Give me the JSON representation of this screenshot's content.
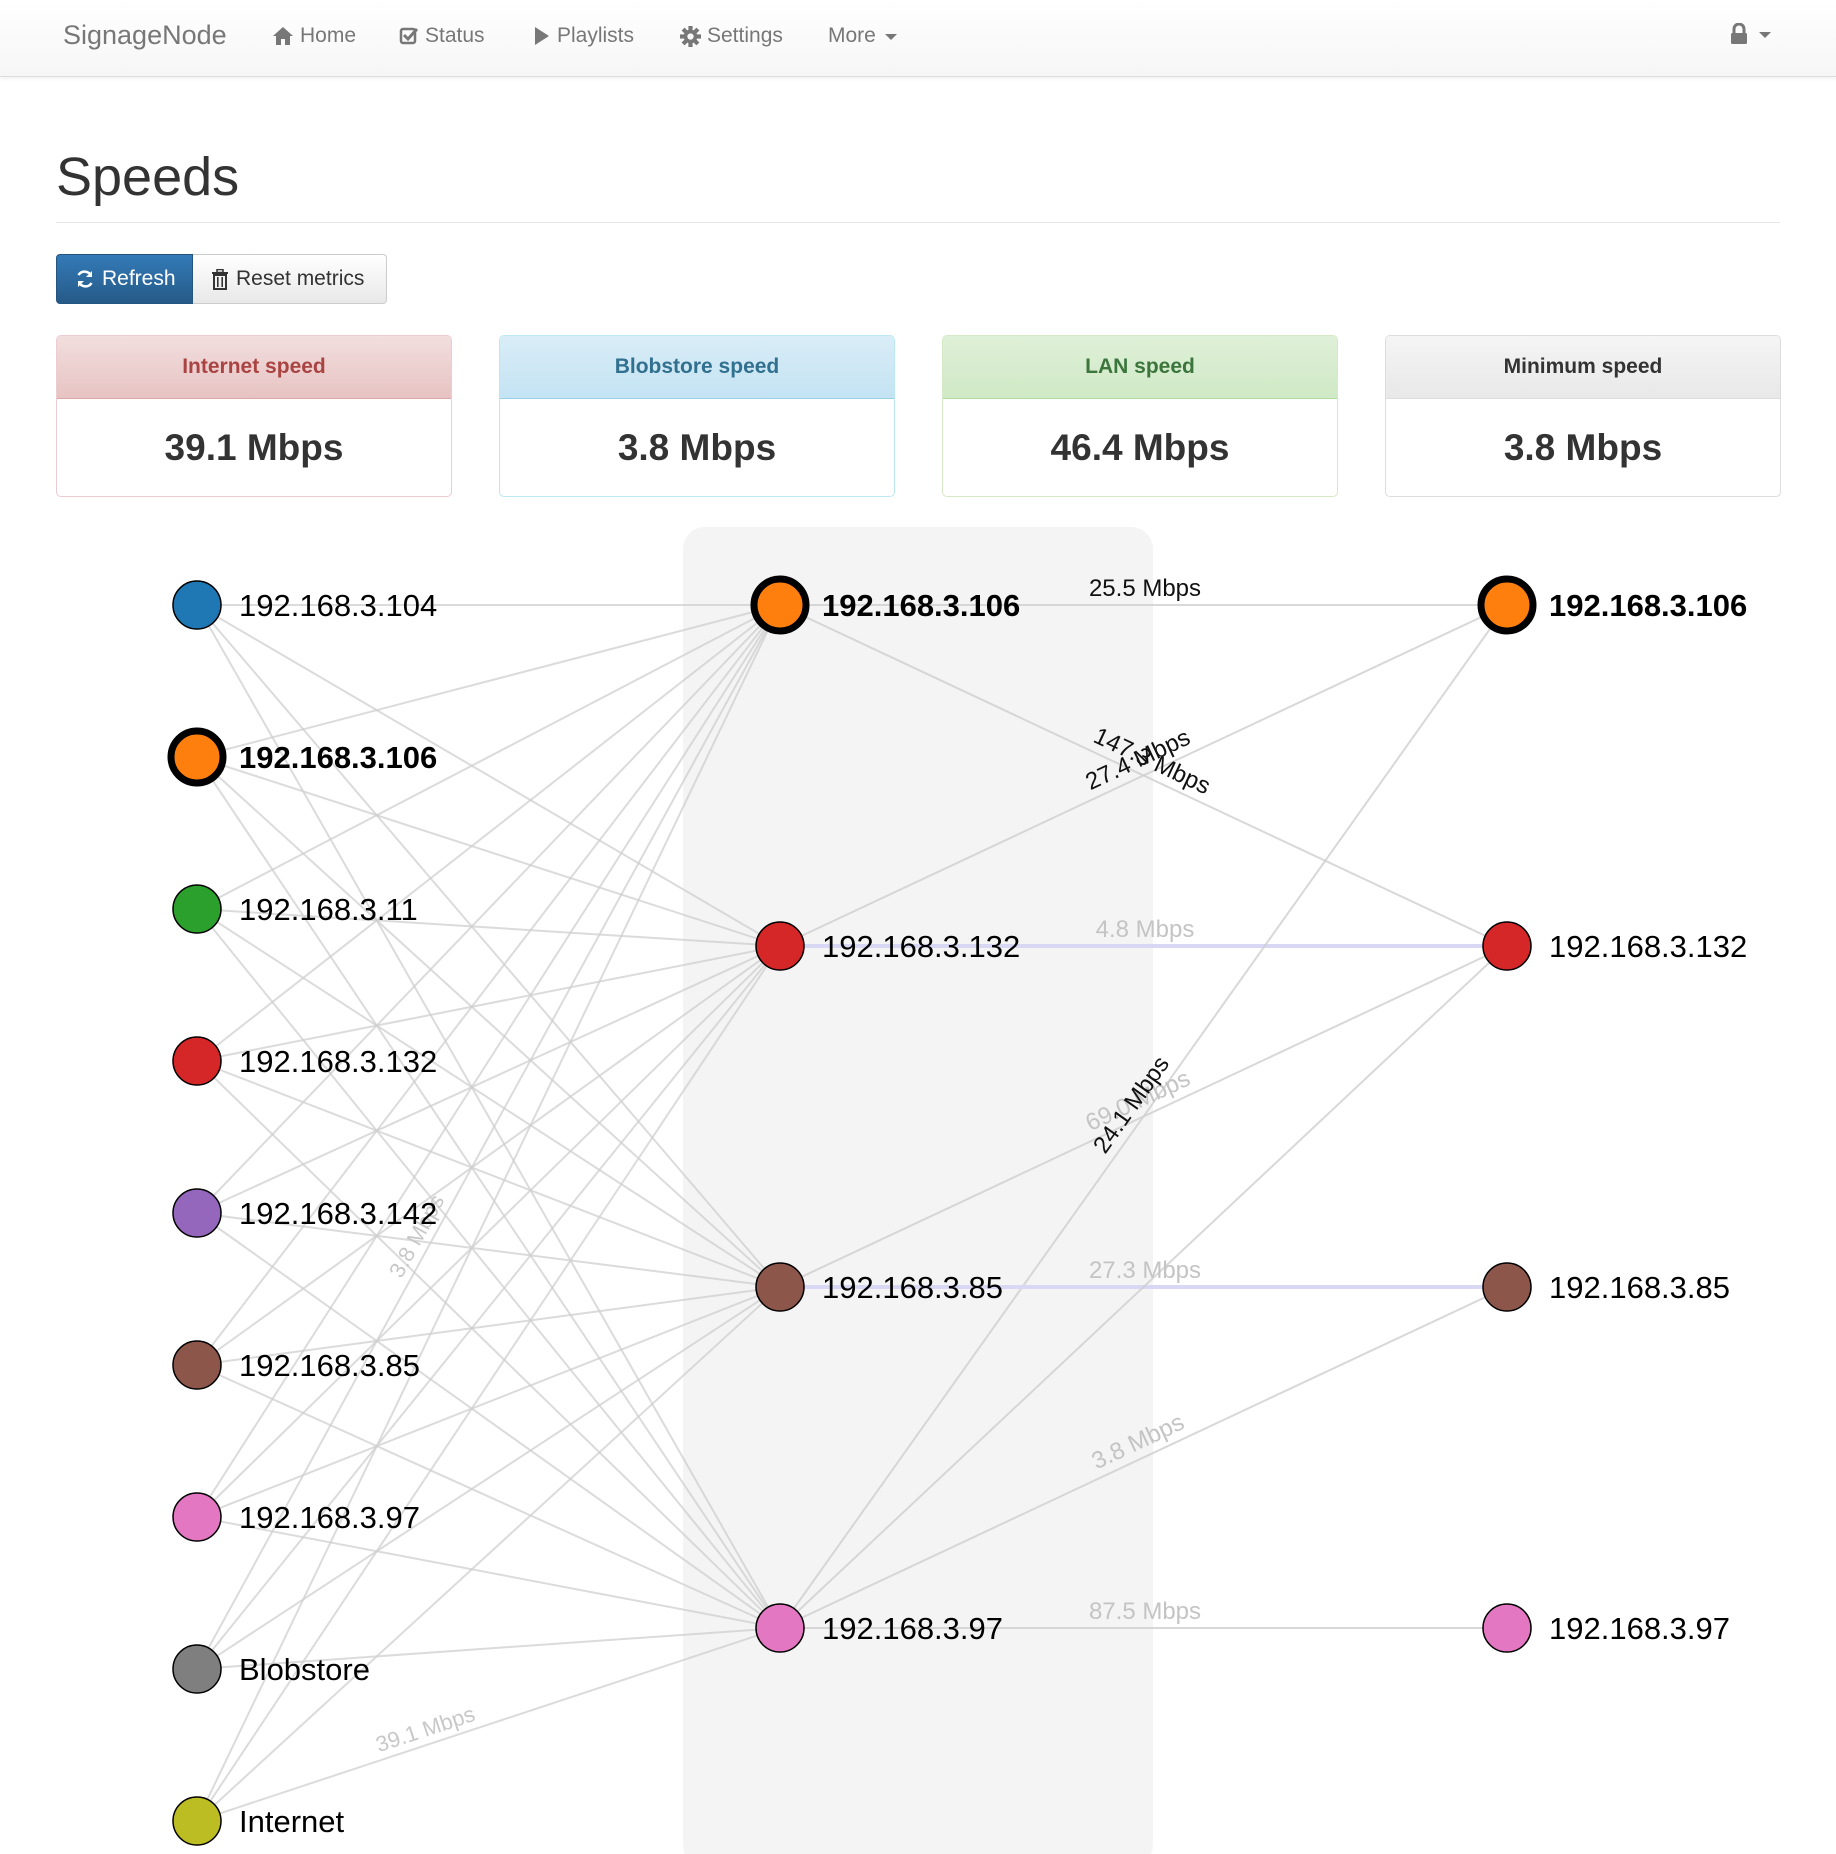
{
  "navbar": {
    "brand": "SignageNode",
    "items": [
      {
        "id": "home",
        "label": "Home",
        "icon": "home-icon"
      },
      {
        "id": "status",
        "label": "Status",
        "icon": "check-square-icon"
      },
      {
        "id": "playlists",
        "label": "Playlists",
        "icon": "play-icon"
      },
      {
        "id": "settings",
        "label": "Settings",
        "icon": "gear-icon"
      },
      {
        "id": "more",
        "label": "More",
        "icon": "caret-down-icon"
      }
    ],
    "user_menu_icon": "lock-icon"
  },
  "page": {
    "title": "Speeds"
  },
  "toolbar": {
    "refresh_label": "Refresh",
    "reset_label": "Reset metrics"
  },
  "panels": [
    {
      "title": "Internet speed",
      "value": "39.1 Mbps",
      "style": "danger"
    },
    {
      "title": "Blobstore speed",
      "value": "3.8 Mbps",
      "style": "info"
    },
    {
      "title": "LAN speed",
      "value": "46.4 Mbps",
      "style": "success"
    },
    {
      "title": "Minimum speed",
      "value": "3.8 Mbps",
      "style": "default"
    }
  ],
  "graph": {
    "colors": {
      "192.168.3.104": "#1f77b4",
      "192.168.3.106": "#ff7f0e",
      "192.168.3.11": "#2ca02c",
      "192.168.3.132": "#d62728",
      "192.168.3.142": "#9467bd",
      "192.168.3.85": "#8c564b",
      "192.168.3.97": "#e377c2",
      "Blobstore": "#7f7f7f",
      "Internet": "#bcbd22"
    },
    "highlighted_node": "192.168.3.106",
    "sources": [
      "192.168.3.104",
      "192.168.3.106",
      "192.168.3.11",
      "192.168.3.132",
      "192.168.3.142",
      "192.168.3.85",
      "192.168.3.97",
      "Blobstore",
      "Internet"
    ],
    "middle": [
      "192.168.3.106",
      "192.168.3.132",
      "192.168.3.85",
      "192.168.3.97"
    ],
    "targets": [
      "192.168.3.106",
      "192.168.3.132",
      "192.168.3.85",
      "192.168.3.97"
    ],
    "left_link_labels": [
      {
        "text": "3.8 Mbps",
        "from": "Blobstore",
        "to": "192.168.3.106"
      },
      {
        "text": "39.1 Mbps",
        "from": "Internet",
        "to": "192.168.3.97"
      }
    ],
    "right_links": [
      {
        "from": "192.168.3.106",
        "to": "192.168.3.106",
        "label": "25.5 Mbps",
        "bold": true
      },
      {
        "from": "192.168.3.106",
        "to": "192.168.3.132",
        "label": "147.3 Mbps",
        "bold": true
      },
      {
        "from": "192.168.3.132",
        "to": "192.168.3.106",
        "label": "27.4 Mbps",
        "bold": true
      },
      {
        "from": "192.168.3.132",
        "to": "192.168.3.132",
        "label": "4.8 Mbps",
        "bold": false,
        "min": true
      },
      {
        "from": "192.168.3.85",
        "to": "192.168.3.132",
        "label": "69.0 Mbps",
        "bold": false
      },
      {
        "from": "192.168.3.97",
        "to": "192.168.3.106",
        "label": "24.1 Mbps",
        "bold": true
      },
      {
        "from": "192.168.3.85",
        "to": "192.168.3.85",
        "label": "27.3 Mbps",
        "bold": false,
        "min": true
      },
      {
        "from": "192.168.3.97",
        "to": "192.168.3.85",
        "label": "3.8 Mbps",
        "bold": false
      },
      {
        "from": "192.168.3.97",
        "to": "192.168.3.132",
        "label": "",
        "bold": false
      },
      {
        "from": "192.168.3.97",
        "to": "192.168.3.97",
        "label": "87.5 Mbps",
        "bold": false
      }
    ]
  }
}
